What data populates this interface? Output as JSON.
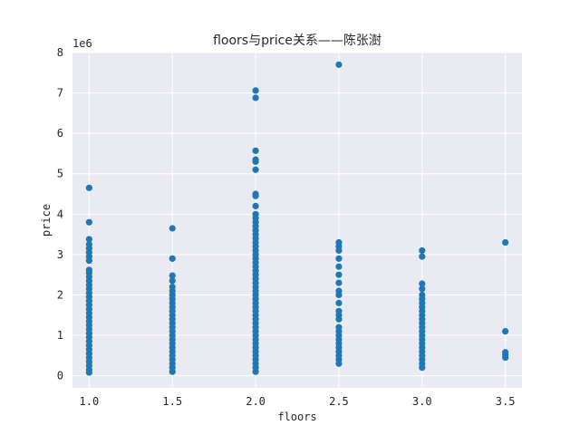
{
  "chart_data": {
    "type": "scatter",
    "title": "floors与price关系——陈张澍",
    "xlabel": "floors",
    "ylabel": "price",
    "y_offset_label": "1e6",
    "xlim": [
      0.9,
      3.6
    ],
    "ylim": [
      -0.3,
      8.0
    ],
    "x_ticks": [
      1.0,
      1.5,
      2.0,
      2.5,
      3.0,
      3.5
    ],
    "x_tick_labels": [
      "1.0",
      "1.5",
      "2.0",
      "2.5",
      "3.0",
      "3.5"
    ],
    "y_ticks": [
      0,
      1,
      2,
      3,
      4,
      5,
      6,
      7,
      8
    ],
    "y_tick_labels": [
      "0",
      "1",
      "2",
      "3",
      "4",
      "5",
      "6",
      "7",
      "8"
    ],
    "grid": true,
    "background": "#eaeaf2",
    "marker_color": "#1f77b4",
    "series": [
      {
        "points": [
          {
            "x": 1.0,
            "y": 0.08
          },
          {
            "x": 1.0,
            "y": 0.15
          },
          {
            "x": 1.0,
            "y": 0.25
          },
          {
            "x": 1.0,
            "y": 0.35
          },
          {
            "x": 1.0,
            "y": 0.45
          },
          {
            "x": 1.0,
            "y": 0.55
          },
          {
            "x": 1.0,
            "y": 0.65
          },
          {
            "x": 1.0,
            "y": 0.75
          },
          {
            "x": 1.0,
            "y": 0.85
          },
          {
            "x": 1.0,
            "y": 0.95
          },
          {
            "x": 1.0,
            "y": 1.05
          },
          {
            "x": 1.0,
            "y": 1.15
          },
          {
            "x": 1.0,
            "y": 1.25
          },
          {
            "x": 1.0,
            "y": 1.35
          },
          {
            "x": 1.0,
            "y": 1.45
          },
          {
            "x": 1.0,
            "y": 1.55
          },
          {
            "x": 1.0,
            "y": 1.65
          },
          {
            "x": 1.0,
            "y": 1.75
          },
          {
            "x": 1.0,
            "y": 1.85
          },
          {
            "x": 1.0,
            "y": 1.95
          },
          {
            "x": 1.0,
            "y": 2.05
          },
          {
            "x": 1.0,
            "y": 2.15
          },
          {
            "x": 1.0,
            "y": 2.25
          },
          {
            "x": 1.0,
            "y": 2.35
          },
          {
            "x": 1.0,
            "y": 2.45
          },
          {
            "x": 1.0,
            "y": 2.55
          },
          {
            "x": 1.0,
            "y": 2.62
          },
          {
            "x": 1.0,
            "y": 2.85
          },
          {
            "x": 1.0,
            "y": 2.95
          },
          {
            "x": 1.0,
            "y": 3.05
          },
          {
            "x": 1.0,
            "y": 3.15
          },
          {
            "x": 1.0,
            "y": 3.25
          },
          {
            "x": 1.0,
            "y": 3.38
          },
          {
            "x": 1.0,
            "y": 3.8
          },
          {
            "x": 1.0,
            "y": 4.65
          },
          {
            "x": 1.5,
            "y": 0.1
          },
          {
            "x": 1.5,
            "y": 0.2
          },
          {
            "x": 1.5,
            "y": 0.3
          },
          {
            "x": 1.5,
            "y": 0.4
          },
          {
            "x": 1.5,
            "y": 0.5
          },
          {
            "x": 1.5,
            "y": 0.6
          },
          {
            "x": 1.5,
            "y": 0.7
          },
          {
            "x": 1.5,
            "y": 0.8
          },
          {
            "x": 1.5,
            "y": 0.9
          },
          {
            "x": 1.5,
            "y": 1.0
          },
          {
            "x": 1.5,
            "y": 1.1
          },
          {
            "x": 1.5,
            "y": 1.2
          },
          {
            "x": 1.5,
            "y": 1.3
          },
          {
            "x": 1.5,
            "y": 1.4
          },
          {
            "x": 1.5,
            "y": 1.5
          },
          {
            "x": 1.5,
            "y": 1.6
          },
          {
            "x": 1.5,
            "y": 1.7
          },
          {
            "x": 1.5,
            "y": 1.8
          },
          {
            "x": 1.5,
            "y": 1.9
          },
          {
            "x": 1.5,
            "y": 2.0
          },
          {
            "x": 1.5,
            "y": 2.1
          },
          {
            "x": 1.5,
            "y": 2.2
          },
          {
            "x": 1.5,
            "y": 2.35
          },
          {
            "x": 1.5,
            "y": 2.48
          },
          {
            "x": 1.5,
            "y": 2.9
          },
          {
            "x": 1.5,
            "y": 3.65
          },
          {
            "x": 2.0,
            "y": 0.1
          },
          {
            "x": 2.0,
            "y": 0.2
          },
          {
            "x": 2.0,
            "y": 0.3
          },
          {
            "x": 2.0,
            "y": 0.4
          },
          {
            "x": 2.0,
            "y": 0.5
          },
          {
            "x": 2.0,
            "y": 0.6
          },
          {
            "x": 2.0,
            "y": 0.7
          },
          {
            "x": 2.0,
            "y": 0.8
          },
          {
            "x": 2.0,
            "y": 0.9
          },
          {
            "x": 2.0,
            "y": 1.0
          },
          {
            "x": 2.0,
            "y": 1.1
          },
          {
            "x": 2.0,
            "y": 1.2
          },
          {
            "x": 2.0,
            "y": 1.3
          },
          {
            "x": 2.0,
            "y": 1.4
          },
          {
            "x": 2.0,
            "y": 1.5
          },
          {
            "x": 2.0,
            "y": 1.6
          },
          {
            "x": 2.0,
            "y": 1.7
          },
          {
            "x": 2.0,
            "y": 1.8
          },
          {
            "x": 2.0,
            "y": 1.9
          },
          {
            "x": 2.0,
            "y": 2.0
          },
          {
            "x": 2.0,
            "y": 2.1
          },
          {
            "x": 2.0,
            "y": 2.2
          },
          {
            "x": 2.0,
            "y": 2.3
          },
          {
            "x": 2.0,
            "y": 2.4
          },
          {
            "x": 2.0,
            "y": 2.5
          },
          {
            "x": 2.0,
            "y": 2.6
          },
          {
            "x": 2.0,
            "y": 2.7
          },
          {
            "x": 2.0,
            "y": 2.8
          },
          {
            "x": 2.0,
            "y": 2.9
          },
          {
            "x": 2.0,
            "y": 3.0
          },
          {
            "x": 2.0,
            "y": 3.1
          },
          {
            "x": 2.0,
            "y": 3.2
          },
          {
            "x": 2.0,
            "y": 3.3
          },
          {
            "x": 2.0,
            "y": 3.4
          },
          {
            "x": 2.0,
            "y": 3.5
          },
          {
            "x": 2.0,
            "y": 3.6
          },
          {
            "x": 2.0,
            "y": 3.7
          },
          {
            "x": 2.0,
            "y": 3.8
          },
          {
            "x": 2.0,
            "y": 3.9
          },
          {
            "x": 2.0,
            "y": 4.0
          },
          {
            "x": 2.0,
            "y": 4.2
          },
          {
            "x": 2.0,
            "y": 4.45
          },
          {
            "x": 2.0,
            "y": 4.5
          },
          {
            "x": 2.0,
            "y": 5.1
          },
          {
            "x": 2.0,
            "y": 5.3
          },
          {
            "x": 2.0,
            "y": 5.35
          },
          {
            "x": 2.0,
            "y": 5.57
          },
          {
            "x": 2.0,
            "y": 6.88
          },
          {
            "x": 2.0,
            "y": 7.06
          },
          {
            "x": 2.5,
            "y": 0.3
          },
          {
            "x": 2.5,
            "y": 0.4
          },
          {
            "x": 2.5,
            "y": 0.5
          },
          {
            "x": 2.5,
            "y": 0.6
          },
          {
            "x": 2.5,
            "y": 0.7
          },
          {
            "x": 2.5,
            "y": 0.8
          },
          {
            "x": 2.5,
            "y": 0.9
          },
          {
            "x": 2.5,
            "y": 1.0
          },
          {
            "x": 2.5,
            "y": 1.1
          },
          {
            "x": 2.5,
            "y": 1.2
          },
          {
            "x": 2.5,
            "y": 1.4
          },
          {
            "x": 2.5,
            "y": 1.5
          },
          {
            "x": 2.5,
            "y": 1.6
          },
          {
            "x": 2.5,
            "y": 1.8
          },
          {
            "x": 2.5,
            "y": 2.0
          },
          {
            "x": 2.5,
            "y": 2.1
          },
          {
            "x": 2.5,
            "y": 2.3
          },
          {
            "x": 2.5,
            "y": 2.5
          },
          {
            "x": 2.5,
            "y": 2.7
          },
          {
            "x": 2.5,
            "y": 2.9
          },
          {
            "x": 2.5,
            "y": 3.1
          },
          {
            "x": 2.5,
            "y": 3.2
          },
          {
            "x": 2.5,
            "y": 3.3
          },
          {
            "x": 2.5,
            "y": 7.7
          },
          {
            "x": 3.0,
            "y": 0.2
          },
          {
            "x": 3.0,
            "y": 0.3
          },
          {
            "x": 3.0,
            "y": 0.4
          },
          {
            "x": 3.0,
            "y": 0.5
          },
          {
            "x": 3.0,
            "y": 0.6
          },
          {
            "x": 3.0,
            "y": 0.7
          },
          {
            "x": 3.0,
            "y": 0.8
          },
          {
            "x": 3.0,
            "y": 0.9
          },
          {
            "x": 3.0,
            "y": 1.0
          },
          {
            "x": 3.0,
            "y": 1.1
          },
          {
            "x": 3.0,
            "y": 1.2
          },
          {
            "x": 3.0,
            "y": 1.3
          },
          {
            "x": 3.0,
            "y": 1.4
          },
          {
            "x": 3.0,
            "y": 1.5
          },
          {
            "x": 3.0,
            "y": 1.6
          },
          {
            "x": 3.0,
            "y": 1.7
          },
          {
            "x": 3.0,
            "y": 1.8
          },
          {
            "x": 3.0,
            "y": 1.9
          },
          {
            "x": 3.0,
            "y": 2.0
          },
          {
            "x": 3.0,
            "y": 2.15
          },
          {
            "x": 3.0,
            "y": 2.28
          },
          {
            "x": 3.0,
            "y": 2.95
          },
          {
            "x": 3.0,
            "y": 3.1
          },
          {
            "x": 3.5,
            "y": 0.45
          },
          {
            "x": 3.5,
            "y": 0.52
          },
          {
            "x": 3.5,
            "y": 0.58
          },
          {
            "x": 3.5,
            "y": 1.1
          },
          {
            "x": 3.5,
            "y": 3.3
          }
        ]
      }
    ]
  }
}
